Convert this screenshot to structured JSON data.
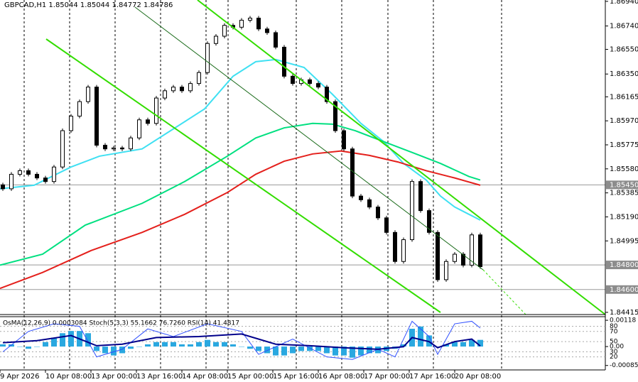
{
  "chart_data": {
    "type": "candlestick",
    "title": "GBPCAD,H1  1.85044 1.85044 1.84772 1.84786",
    "xlim": [
      0,
      213
    ],
    "ylim": [
      1.84397,
      1.86951
    ],
    "yticks": [
      1.8694,
      1.8674,
      1.8655,
      1.8635,
      1.86165,
      1.8597,
      1.85775,
      1.8558,
      1.85385,
      1.8519,
      1.84995,
      1.84415
    ],
    "ytick_labels": [
      "1.86940",
      "1.86740",
      "1.86550",
      "1.86350",
      "1.86165",
      "1.85970",
      "1.85775",
      "1.85580",
      "1.85385",
      "1.85190",
      "1.84995",
      "1.84415"
    ],
    "levels": [
      {
        "value": 1.8545,
        "label": "1.85450"
      },
      {
        "value": 1.848,
        "label": "1.84800"
      },
      {
        "value": 1.846,
        "label": "1.84600"
      }
    ],
    "xticks": [
      {
        "value": 0,
        "label": "9 Apr 2026"
      },
      {
        "value": 16,
        "label": "10 Apr 08:00"
      },
      {
        "value": 32,
        "label": "13 Apr 00:00"
      },
      {
        "value": 48,
        "label": "13 Apr 16:00"
      },
      {
        "value": 64,
        "label": "14 Apr 08:00"
      },
      {
        "value": 80,
        "label": "15 Apr 00:00"
      },
      {
        "value": 96,
        "label": "15 Apr 16:00"
      },
      {
        "value": 112,
        "label": "16 Apr 08:00"
      },
      {
        "value": 128,
        "label": "17 Apr 00:00"
      },
      {
        "value": 144,
        "label": "17 Apr 16:00"
      },
      {
        "value": 160,
        "label": "20 Apr 08:00"
      }
    ],
    "open": 1.8545,
    "candles": {
      "x": [
        1,
        4,
        7,
        10,
        13,
        16,
        19,
        22,
        25,
        28,
        31,
        34,
        37,
        40,
        43,
        46,
        49,
        52,
        55,
        58,
        61,
        64,
        67,
        70,
        73,
        76,
        79,
        82,
        85,
        88,
        91,
        94,
        97,
        100,
        103,
        106,
        109,
        112,
        115,
        118,
        121,
        124,
        127,
        130,
        133,
        136,
        139,
        142,
        145,
        148,
        151,
        154,
        157,
        160,
        163,
        166,
        169
      ],
      "close": [
        1.85418,
        1.85536,
        1.85565,
        1.85536,
        1.85506,
        1.85477,
        1.85595,
        1.8589,
        1.86008,
        1.86126,
        1.86244,
        1.85772,
        1.85742,
        1.8575,
        1.85742,
        1.85831,
        1.85978,
        1.85949,
        1.86155,
        1.86214,
        1.86244,
        1.86214,
        1.86273,
        1.86362,
        1.86598,
        1.86657,
        1.86745,
        1.8673,
        1.86787,
        1.86804,
        1.86716,
        1.86686,
        1.86568,
        1.86332,
        1.86273,
        1.86303,
        1.86273,
        1.86244,
        1.86126,
        1.8589,
        1.85742,
        1.85359,
        1.85329,
        1.8527,
        1.85182,
        1.85064,
        1.84828,
        1.85005,
        1.85477,
        1.85241,
        1.85064,
        1.8468,
        1.84828,
        1.84887,
        1.84798,
        1.85044,
        1.84786
      ]
    },
    "series": [
      {
        "color": "#3fe0f2",
        "x": [
          0,
          12,
          25,
          35,
          50,
          62,
          72,
          82,
          90,
          97,
          107,
          117,
          127,
          135,
          142,
          150,
          155,
          160,
          165,
          169
        ],
        "values": [
          1.85418,
          1.85447,
          1.85595,
          1.85683,
          1.85742,
          1.85919,
          1.86067,
          1.86332,
          1.8645,
          1.86468,
          1.86403,
          1.86185,
          1.85949,
          1.85801,
          1.85624,
          1.85489,
          1.85359,
          1.8527,
          1.85211,
          1.85164
        ]
      },
      {
        "color": "#00e080",
        "x": [
          0,
          15,
          30,
          50,
          65,
          80,
          90,
          100,
          110,
          117,
          125,
          135,
          145,
          155,
          165,
          169
        ],
        "values": [
          1.84798,
          1.84887,
          1.85123,
          1.853,
          1.85477,
          1.85683,
          1.85831,
          1.85913,
          1.85949,
          1.85943,
          1.8589,
          1.85801,
          1.85713,
          1.85624,
          1.85518,
          1.85489
        ]
      },
      {
        "color": "#e4201c",
        "x": [
          0,
          15,
          32,
          50,
          65,
          80,
          90,
          100,
          110,
          120,
          130,
          140,
          150,
          160,
          169
        ],
        "values": [
          1.84609,
          1.84739,
          1.84916,
          1.85064,
          1.85211,
          1.85388,
          1.85536,
          1.85642,
          1.85701,
          1.85725,
          1.85689,
          1.85636,
          1.85565,
          1.85506,
          1.85447
        ]
      }
    ],
    "indicator": {
      "label": "OsMA(12,26,9) 0.0003084  Stoch(5,3,3) 55.1662 76.7260  RSI(14) 41.4817",
      "ylim": [
        -5.6,
        97.6
      ],
      "yticks": [
        80,
        70,
        50,
        30,
        20
      ],
      "y2lim": [
        -0.00105,
        0.00131
      ],
      "y2ticks": [
        0.00118,
        {
          "value": 0,
          "label": "0.00"
        },
        -0.00085
      ],
      "osma": {
        "color": "#2aa8e0",
        "axis": "y2",
        "values": [
          0.0001,
          0.0001,
          0,
          -0.0001,
          0,
          0.0002,
          0.0004,
          0.0006,
          0.0007,
          0.0007,
          0.0006,
          -0.0002,
          -0.0003,
          -0.0004,
          -0.0003,
          -0.0001,
          0,
          0.0001,
          0.0002,
          0.0002,
          0.0002,
          0.0001,
          0.0001,
          0.0002,
          0.0003,
          0.0002,
          0.0002,
          0.0001,
          0,
          -0.0001,
          -0.0002,
          -0.0003,
          -0.0004,
          -0.0004,
          -0.0003,
          -0.0002,
          -0.0002,
          -0.0002,
          -0.0003,
          -0.0004,
          -0.0004,
          -0.0005,
          -0.0004,
          -0.0003,
          -0.0003,
          -0.0002,
          -0.0001,
          0.0001,
          0.0008,
          0.0009,
          0.0005,
          0,
          0.0001,
          0.0002,
          0.0002,
          0.0003,
          0.0003
        ]
      },
      "stoch": {
        "color": "#3050ff",
        "x": [
          1,
          10,
          19,
          28,
          34,
          43,
          52,
          61,
          73,
          85,
          91,
          103,
          115,
          124,
          133,
          139,
          145,
          151,
          154,
          160,
          166,
          169
        ],
        "values": [
          30,
          70,
          85,
          80,
          20,
          35,
          75,
          60,
          85,
          70,
          25,
          55,
          20,
          15,
          35,
          20,
          90,
          60,
          25,
          85,
          90,
          76.7
        ]
      },
      "rsi": {
        "color": "#00008b",
        "x": [
          1,
          13,
          25,
          34,
          43,
          55,
          70,
          85,
          97,
          109,
          121,
          133,
          142,
          145,
          151,
          154,
          160,
          166,
          169
        ],
        "values": [
          48,
          52,
          62,
          42,
          45,
          58,
          60,
          65,
          45,
          42,
          38,
          35,
          40,
          58,
          50,
          38,
          50,
          55,
          41.5
        ]
      }
    }
  }
}
